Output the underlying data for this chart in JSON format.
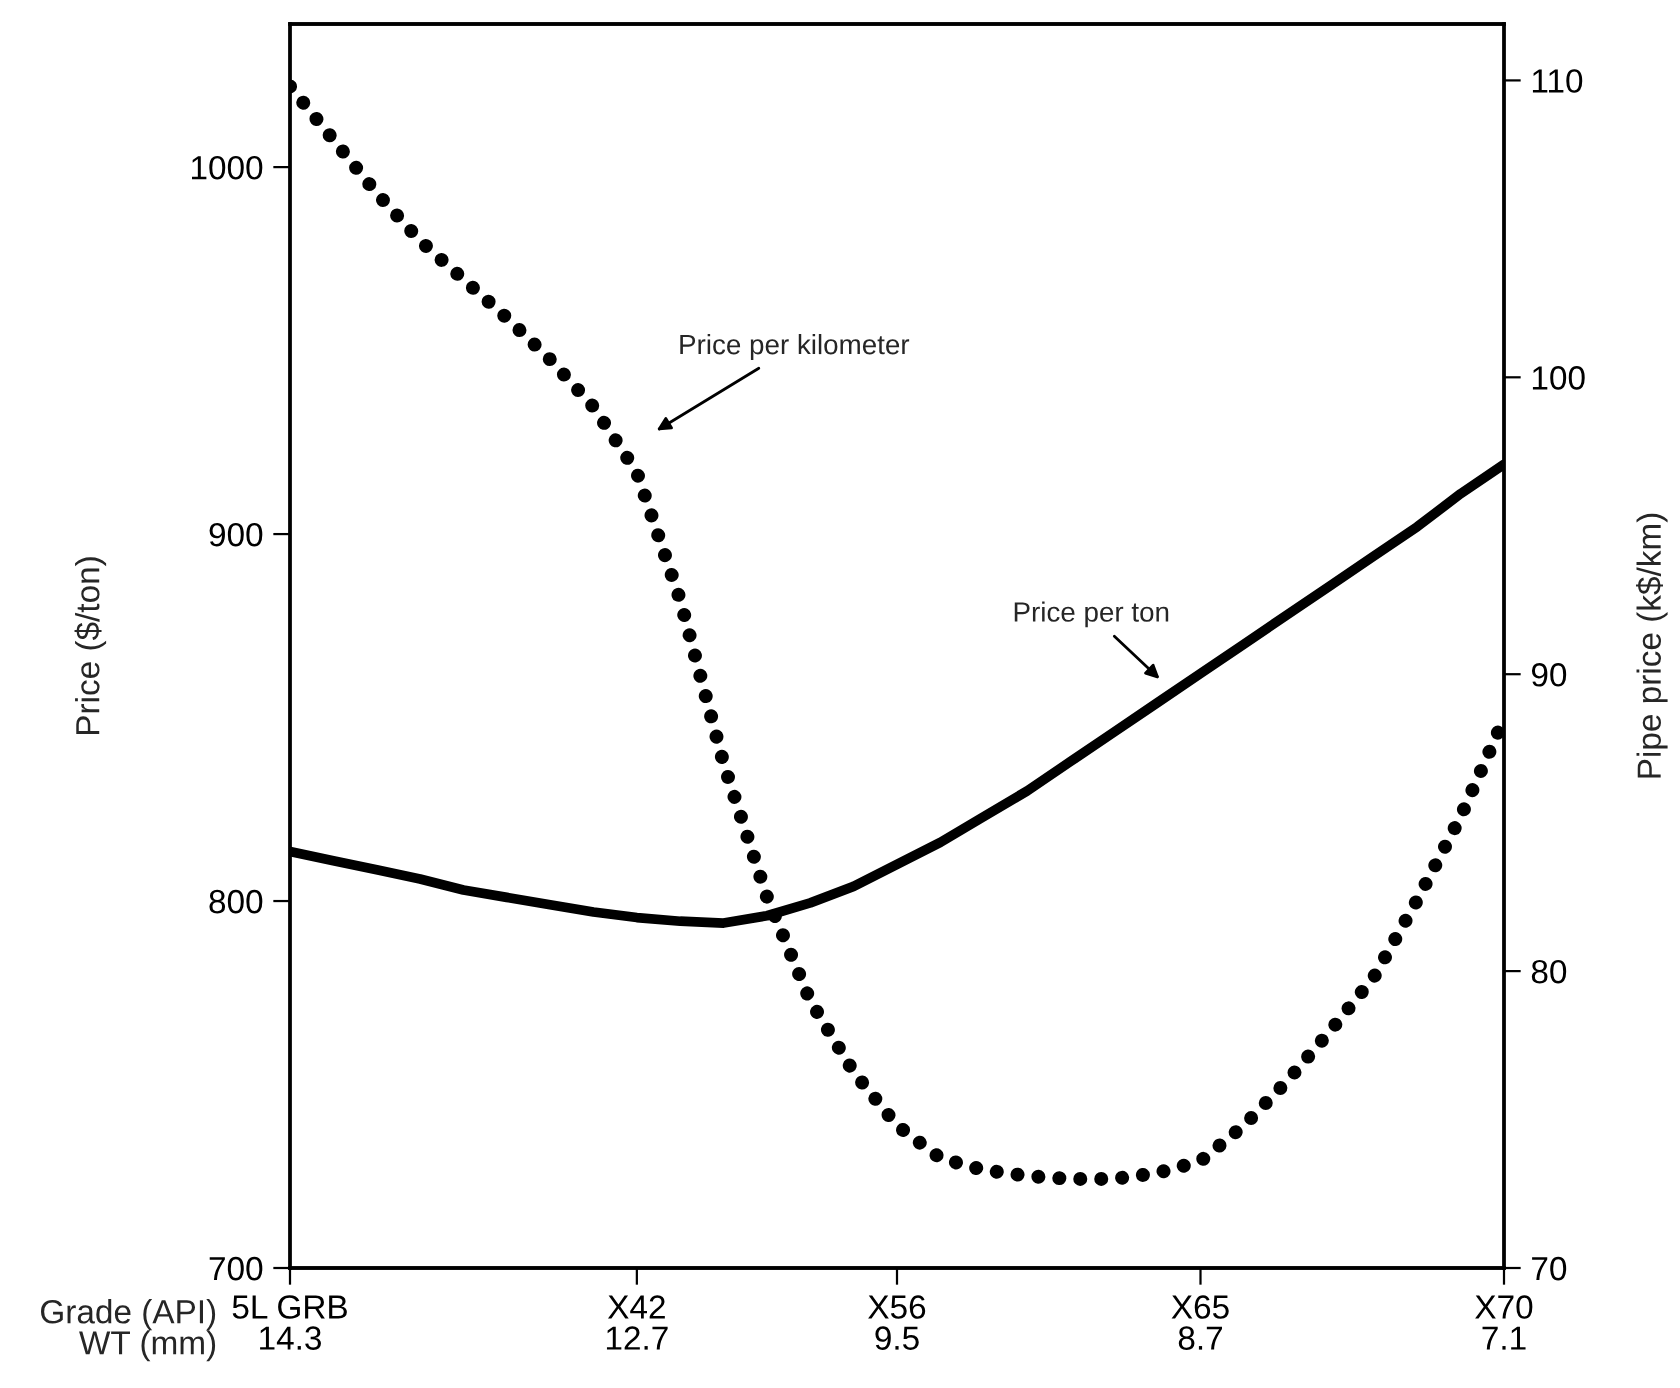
{
  "chart_data": {
    "type": "line",
    "xlabel": "Grade (API)\nWT (mm)",
    "ylabel": "Price ($/ton)",
    "y2label": "Pipe price (k$/km)",
    "categories": [
      "5L GRB\n14.3",
      null,
      null,
      null,
      null,
      null,
      null,
      null,
      "X42\n12.7",
      null,
      null,
      null,
      null,
      null,
      "X56\n9.5",
      null,
      null,
      null,
      null,
      null,
      null,
      "X65\n8.7",
      null,
      null,
      null,
      null,
      null,
      null,
      "X70\n7.1"
    ],
    "ylim": [
      700,
      1039
    ],
    "yticks": [
      700,
      800,
      900,
      1000
    ],
    "y2lim": [
      70,
      111.9
    ],
    "y2ticks": [
      70,
      80,
      90,
      100,
      110
    ],
    "series": [
      {
        "color": "#000000",
        "line_style": "solid",
        "values": [
          813.5,
          811,
          808.5,
          806,
          803,
          801,
          799,
          797,
          795.5,
          794.5,
          794,
          796,
          799.5,
          804,
          810,
          816,
          823,
          830,
          838,
          846,
          854,
          862,
          870,
          878,
          886,
          894,
          902,
          911,
          919
        ]
      },
      {
        "color": "#000000",
        "line_style": "dotted",
        "axis": "y2",
        "values": [
          109.8,
          108.0,
          106.2,
          104.6,
          103.3,
          102.0,
          100.6,
          99.0,
          96.8,
          92.5,
          87.0,
          82.5,
          79.0,
          76.6,
          74.8,
          73.7,
          73.3,
          73.1,
          73.0,
          73.0,
          73.2,
          73.6,
          74.8,
          76.3,
          78.0,
          79.8,
          82.4,
          85.2,
          88.5
        ]
      }
    ],
    "annotations": [
      "Price per kilometer",
      "Price per ton"
    ],
    "grid": false,
    "legend": false
  }
}
